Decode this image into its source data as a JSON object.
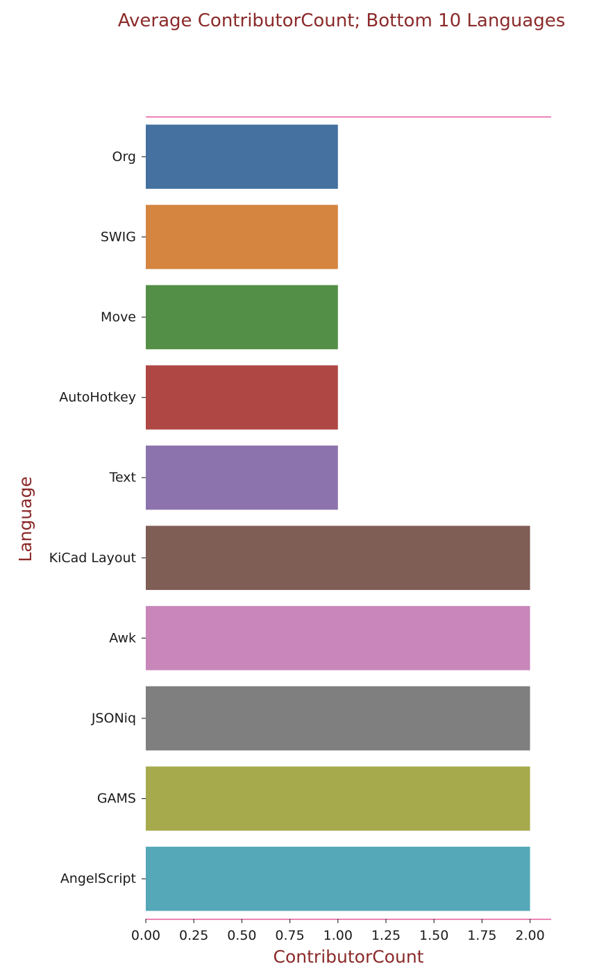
{
  "chart_data": {
    "type": "bar",
    "orientation": "horizontal",
    "title": "Average ContributorCount; Bottom 10 Languages",
    "xlabel": "ContributorCount",
    "ylabel": "Language",
    "categories": [
      "Org",
      "SWIG",
      "Move",
      "AutoHotkey",
      "Text",
      "KiCad Layout",
      "Awk",
      "JSONiq",
      "GAMS",
      "AngelScript"
    ],
    "values": [
      1,
      1,
      1,
      1,
      1,
      2,
      2,
      2,
      2,
      2
    ],
    "colors": [
      "#4471a0",
      "#d58540",
      "#548f47",
      "#af4744",
      "#8d73ad",
      "#7f5e56",
      "#c886ba",
      "#7f7f7f",
      "#a6aa4c",
      "#55a8b7"
    ],
    "xlim": [
      0,
      2.11
    ],
    "xticks": [
      "0.00",
      "0.25",
      "0.50",
      "0.75",
      "1.00",
      "1.25",
      "1.50",
      "1.75",
      "2.00"
    ],
    "grid": false,
    "spine_color": "#e8569a"
  }
}
